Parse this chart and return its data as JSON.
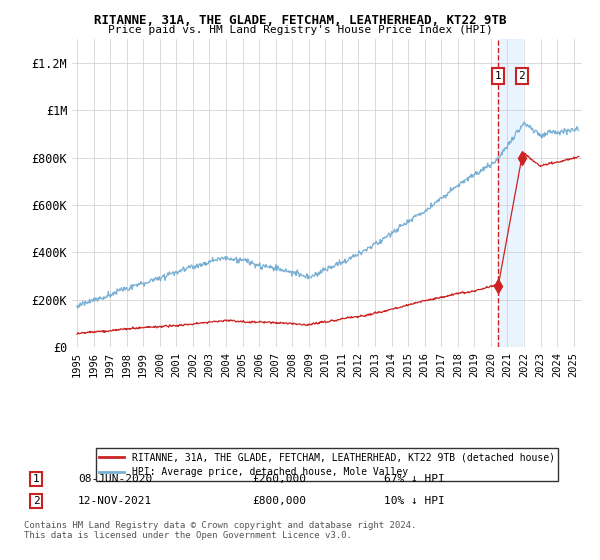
{
  "title1": "RITANNE, 31A, THE GLADE, FETCHAM, LEATHERHEAD, KT22 9TB",
  "title2": "Price paid vs. HM Land Registry's House Price Index (HPI)",
  "ylabel_ticks": [
    "£0",
    "£200K",
    "£400K",
    "£600K",
    "£800K",
    "£1M",
    "£1.2M"
  ],
  "ytick_values": [
    0,
    200000,
    400000,
    600000,
    800000,
    1000000,
    1200000
  ],
  "ylim": [
    0,
    1300000
  ],
  "xlim_start": 1994.7,
  "xlim_end": 2025.5,
  "hpi_color": "#7ab0d4",
  "price_color": "#cc2222",
  "transaction1_date": 2020.44,
  "transaction1_price": 260000,
  "transaction2_date": 2021.87,
  "transaction2_price": 800000,
  "vline_color": "#cc2222",
  "shade_color": "#ddeeff",
  "legend_label1": "RITANNE, 31A, THE GLADE, FETCHAM, LEATHERHEAD, KT22 9TB (detached house)",
  "legend_label2": "HPI: Average price, detached house, Mole Valley",
  "annotation1_label": "1",
  "annotation1_text": "08-JUN-2020",
  "annotation1_price": "£260,000",
  "annotation1_pct": "67% ↓ HPI",
  "annotation2_label": "2",
  "annotation2_text": "12-NOV-2021",
  "annotation2_price": "£800,000",
  "annotation2_pct": "10% ↓ HPI",
  "footer": "Contains HM Land Registry data © Crown copyright and database right 2024.\nThis data is licensed under the Open Government Licence v3.0.",
  "background_color": "#ffffff",
  "grid_color": "#cccccc"
}
